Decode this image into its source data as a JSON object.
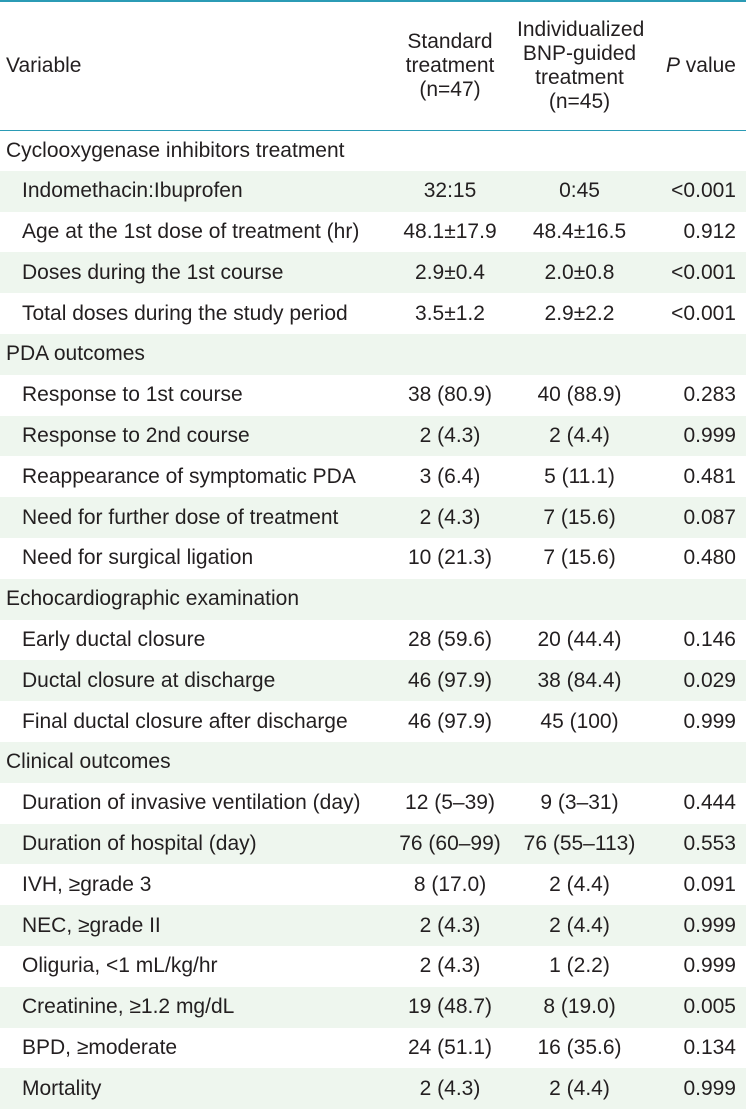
{
  "header": {
    "variable": "Variable",
    "standard_line1": "Standard",
    "standard_line2": "treatment",
    "standard_line3": "(n=47)",
    "bnp_line1": "Individualized",
    "bnp_line2": "BNP-guided",
    "bnp_line3": "treatment",
    "bnp_line4": "(n=45)",
    "p_italic": "P",
    "p_rest": " value"
  },
  "sections": [
    {
      "title": "Cyclooxygenase inhibitors treatment",
      "rows": [
        {
          "variable": "Indomethacin:Ibuprofen",
          "standard": "32:15",
          "bnp": "0:45",
          "p": "<0.001"
        },
        {
          "variable": "Age at the 1st dose of treatment (hr)",
          "standard": "48.1±17.9",
          "bnp": "48.4±16.5",
          "p": "0.912"
        },
        {
          "variable": "Doses during the 1st course",
          "standard": "2.9±0.4",
          "bnp": "2.0±0.8",
          "p": "<0.001"
        },
        {
          "variable": "Total doses during the study period",
          "standard": "3.5±1.2",
          "bnp": "2.9±2.2",
          "p": "<0.001"
        }
      ]
    },
    {
      "title": "PDA outcomes",
      "rows": [
        {
          "variable": "Response to 1st course",
          "standard": "38 (80.9)",
          "bnp": "40 (88.9)",
          "p": "0.283"
        },
        {
          "variable": "Response to 2nd course",
          "standard": "2 (4.3)",
          "bnp": "2 (4.4)",
          "p": "0.999"
        },
        {
          "variable": "Reappearance of symptomatic PDA",
          "standard": "3 (6.4)",
          "bnp": "5 (11.1)",
          "p": "0.481"
        },
        {
          "variable": "Need for further dose of treatment",
          "standard": "2 (4.3)",
          "bnp": "7 (15.6)",
          "p": "0.087"
        },
        {
          "variable": "Need for surgical ligation",
          "standard": "10 (21.3)",
          "bnp": "7 (15.6)",
          "p": "0.480"
        }
      ]
    },
    {
      "title": "Echocardiographic examination",
      "rows": [
        {
          "variable": "Early ductal closure",
          "standard": "28 (59.6)",
          "bnp": "20 (44.4)",
          "p": "0.146"
        },
        {
          "variable": "Ductal closure at discharge",
          "standard": "46 (97.9)",
          "bnp": "38 (84.4)",
          "p": "0.029"
        },
        {
          "variable": "Final ductal closure after discharge",
          "standard": "46 (97.9)",
          "bnp": "45 (100)",
          "p": "0.999"
        }
      ]
    },
    {
      "title": "Clinical outcomes",
      "rows": [
        {
          "variable": "Duration of invasive ventilation (day)",
          "standard": "12 (5–39)",
          "bnp": "9 (3–31)",
          "p": "0.444"
        },
        {
          "variable": "Duration of hospital (day)",
          "standard": "76 (60–99)",
          "bnp": "76 (55–113)",
          "p": "0.553"
        },
        {
          "variable": "IVH, ≥grade 3",
          "standard": "8 (17.0)",
          "bnp": "2 (4.4)",
          "p": "0.091"
        },
        {
          "variable": "NEC, ≥grade II",
          "standard": "2 (4.3)",
          "bnp": "2 (4.4)",
          "p": "0.999"
        },
        {
          "variable": "Oliguria, <1 mL/kg/hr",
          "standard": "2 (4.3)",
          "bnp": "1 (2.2)",
          "p": "0.999"
        },
        {
          "variable": "Creatinine, ≥1.2 mg/dL",
          "standard": "19 (48.7)",
          "bnp": "8 (19.0)",
          "p": "0.005"
        },
        {
          "variable": "BPD, ≥moderate",
          "standard": "24 (51.1)",
          "bnp": "16 (35.6)",
          "p": "0.134"
        },
        {
          "variable": "Mortality",
          "standard": "2 (4.3)",
          "bnp": "2 (4.4)",
          "p": "0.999"
        }
      ]
    }
  ],
  "colors": {
    "rule": "#2b9bb5",
    "stripe": "#eef6ee",
    "text": "#231f20"
  }
}
